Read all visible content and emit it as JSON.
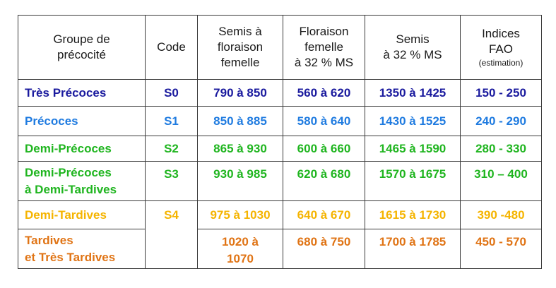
{
  "header": {
    "groupe": [
      "Groupe de",
      "précocité"
    ],
    "code": [
      "Code"
    ],
    "semis_floraison": [
      "Semis à",
      "floraison",
      "femelle"
    ],
    "floraison_ms": [
      "Floraison",
      "femelle",
      "à 32 % MS"
    ],
    "semis_ms": [
      "Semis",
      "à 32 % MS"
    ],
    "indices_fao": [
      "Indices",
      "FAO"
    ],
    "indices_note": "(estimation)"
  },
  "colors": {
    "tres_precoces": "#1a1a9e",
    "precoces": "#1f7be0",
    "demi_precoces": "#1fb51f",
    "demi_tardives": "#f5b400",
    "tardives": "#e07415"
  },
  "rows": [
    {
      "groupe": [
        "Très Précoces"
      ],
      "code": "S0",
      "semis_floraison": [
        "790 à 850"
      ],
      "floraison_ms": "560 à 620",
      "semis_ms": "1350 à 1425",
      "fao": "150 - 250"
    },
    {
      "groupe": [
        "Précoces"
      ],
      "code": "S1",
      "semis_floraison": [
        "850 à 885"
      ],
      "floraison_ms": "580 à 640",
      "semis_ms": "1430 à 1525",
      "fao": "240 - 290"
    },
    {
      "groupe": [
        "Demi-Précoces"
      ],
      "code": "S2",
      "semis_floraison": [
        "865 à 930"
      ],
      "floraison_ms": "600 à 660",
      "semis_ms": "1465 à 1590",
      "fao": "280 - 330"
    },
    {
      "groupe": [
        "Demi-Précoces",
        "à Demi-Tardives"
      ],
      "code": "S3",
      "semis_floraison": [
        "930 à 985"
      ],
      "floraison_ms": "620 à 680",
      "semis_ms": "1570 à 1675",
      "fao": "310 – 400"
    },
    {
      "groupe": [
        "Demi-Tardives"
      ],
      "code": "S4",
      "semis_floraison": [
        "975 à 1030"
      ],
      "floraison_ms": "640 à 670",
      "semis_ms": "1615 à 1730",
      "fao": "390 -480"
    },
    {
      "groupe": [
        "Tardives",
        "et Très Tardives"
      ],
      "code": "",
      "semis_floraison": [
        "1020 à",
        "1070"
      ],
      "floraison_ms": "680 à 750",
      "semis_ms": "1700 à 1785",
      "fao": "450 - 570"
    }
  ]
}
